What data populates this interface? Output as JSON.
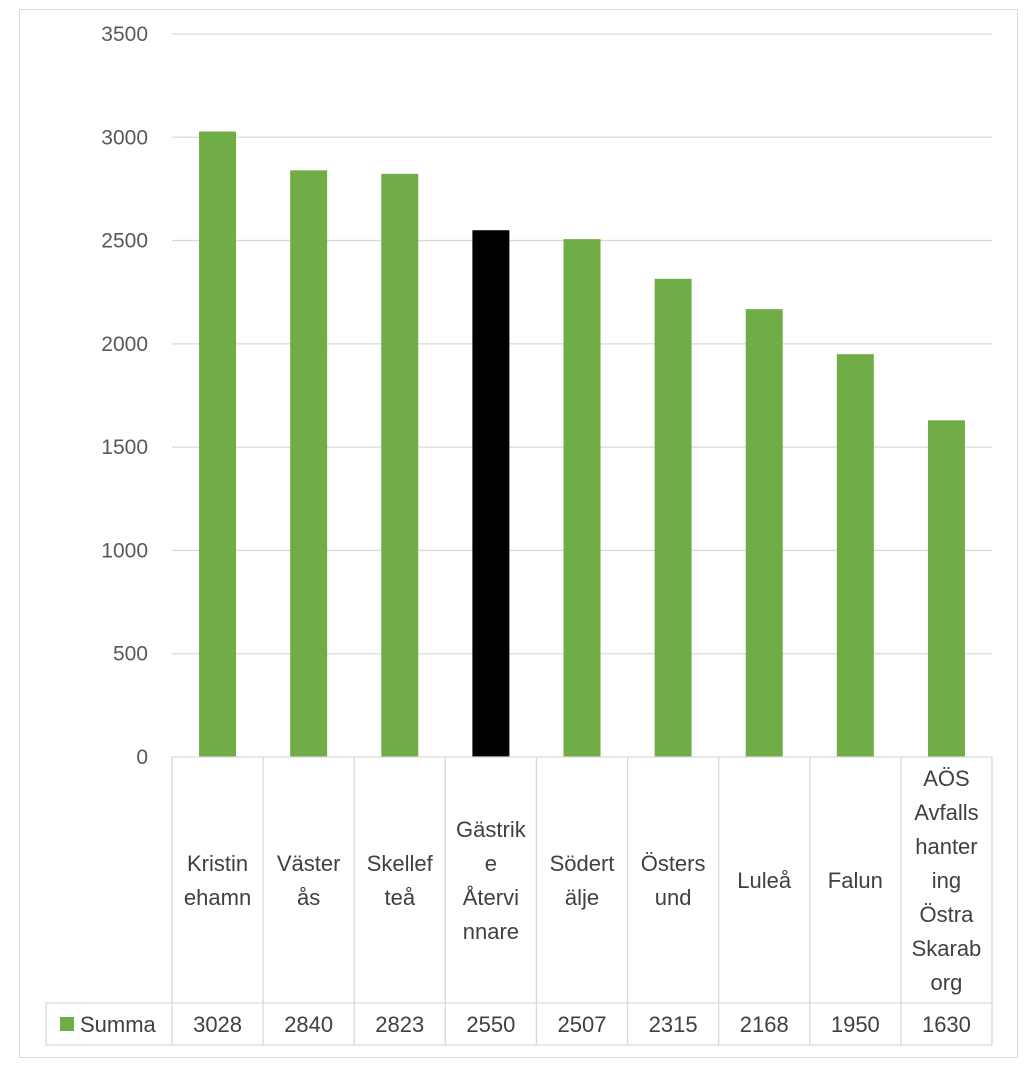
{
  "chart_data": {
    "type": "bar",
    "categories": [
      "Kristin|ehamn",
      "Väster|ås",
      "Skellef|teå",
      "Gästrik|e|Återvi|nnare",
      "Södert|älje",
      "Östers|und",
      "Luleå",
      "Falun",
      "AÖS|Avfalls|hanter|ing|Östra|Skarab|org"
    ],
    "series": [
      {
        "name": "Summa",
        "values": [
          3028,
          2840,
          2823,
          2550,
          2507,
          2315,
          2168,
          1950,
          1630
        ]
      }
    ],
    "bar_colors": [
      "#70ad47",
      "#70ad47",
      "#70ad47",
      "#000000",
      "#70ad47",
      "#70ad47",
      "#70ad47",
      "#70ad47",
      "#70ad47"
    ],
    "ylim": [
      0,
      3500
    ],
    "yticks": [
      0,
      500,
      1000,
      1500,
      2000,
      2500,
      3000,
      3500
    ],
    "grid": true,
    "data_table": true,
    "legend_color": "#70ad47",
    "title": "",
    "xlabel": "",
    "ylabel": ""
  }
}
